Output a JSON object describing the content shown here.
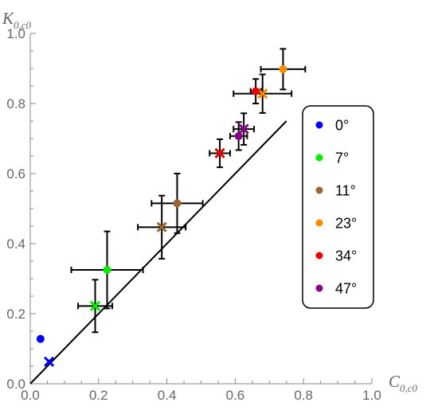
{
  "chart_data": {
    "type": "scatter",
    "xlabel": {
      "main": "C",
      "sub": "0,c0"
    },
    "ylabel": {
      "main": "K",
      "sub": "0,c0"
    },
    "xlim": [
      0,
      1
    ],
    "ylim": [
      0,
      1
    ],
    "xticks": [
      "0.0",
      "0.2",
      "0.4",
      "0.6",
      "0.8",
      "1.0"
    ],
    "yticks": [
      "0.0",
      "0.2",
      "0.4",
      "0.6",
      "0.8",
      "1.0"
    ],
    "reference_line": {
      "x": [
        0,
        0.75
      ],
      "y": [
        0,
        0.75
      ]
    },
    "legend_position": "right",
    "series": [
      {
        "name": "0°",
        "color": "#0000ff",
        "dot": {
          "x": 0.03,
          "y": 0.128,
          "xerr": 0,
          "yerr": 0
        },
        "cross": {
          "x": 0.055,
          "y": 0.063,
          "xerr": 0,
          "yerr": 0
        }
      },
      {
        "name": "7°",
        "color": "#00ee00",
        "dot": {
          "x": 0.225,
          "y": 0.325,
          "xerr": 0.105,
          "yerr": 0.11
        },
        "cross": {
          "x": 0.19,
          "y": 0.222,
          "xerr": 0.05,
          "yerr": 0.075
        }
      },
      {
        "name": "11°",
        "color": "#996633",
        "dot": {
          "x": 0.43,
          "y": 0.515,
          "xerr": 0.075,
          "yerr": 0.085
        },
        "cross": {
          "x": 0.385,
          "y": 0.447,
          "xerr": 0.07,
          "yerr": 0.09
        }
      },
      {
        "name": "23°",
        "color": "#ff8800",
        "dot": {
          "x": 0.74,
          "y": 0.898,
          "xerr": 0.065,
          "yerr": 0.058
        },
        "cross": {
          "x": 0.68,
          "y": 0.828,
          "xerr": 0.085,
          "yerr": 0.055
        }
      },
      {
        "name": "34°",
        "color": "#ee0000",
        "dot": {
          "x": 0.66,
          "y": 0.835,
          "xerr": 0.015,
          "yerr": 0.035
        },
        "cross": {
          "x": 0.555,
          "y": 0.658,
          "xerr": 0.03,
          "yerr": 0.04
        }
      },
      {
        "name": "47°",
        "color": "#880088",
        "dot": {
          "x": 0.61,
          "y": 0.707,
          "xerr": 0.025,
          "yerr": 0.04
        },
        "cross": {
          "x": 0.625,
          "y": 0.727,
          "xerr": 0.03,
          "yerr": 0.045
        }
      }
    ]
  }
}
